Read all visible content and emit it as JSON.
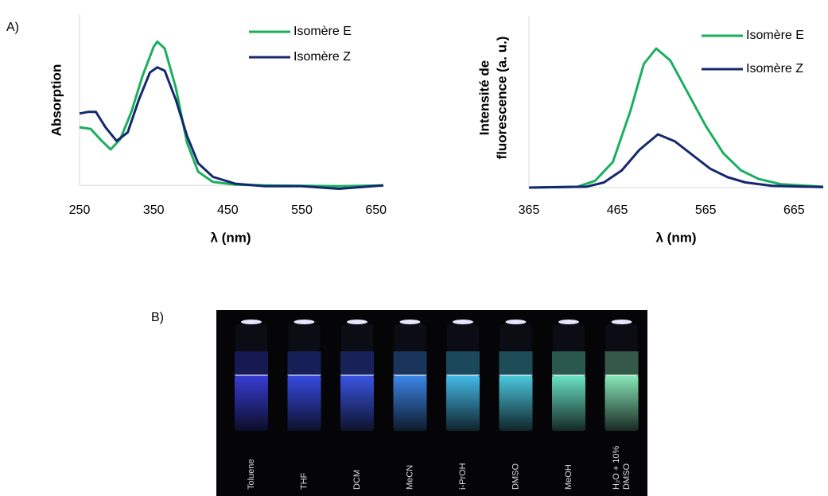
{
  "panel_labels": [
    "A)",
    "B)"
  ],
  "chart_data": [
    {
      "type": "line",
      "xlabel": "λ (nm)",
      "ylabel": "Absorption",
      "xlim": [
        250,
        660
      ],
      "xticks": [
        250,
        350,
        450,
        550,
        650
      ],
      "ylim": [
        -0.05,
        1
      ],
      "legend": "upper right",
      "series": [
        {
          "name": "Isomère E",
          "color": "#1aaf5d",
          "x": [
            250,
            265,
            280,
            292,
            305,
            320,
            335,
            350,
            355,
            365,
            380,
            395,
            410,
            430,
            460,
            500,
            600,
            660
          ],
          "values": [
            0.34,
            0.33,
            0.26,
            0.21,
            0.27,
            0.43,
            0.64,
            0.81,
            0.84,
            0.8,
            0.57,
            0.25,
            0.08,
            0.02,
            0.005,
            0,
            -0.005,
            0
          ]
        },
        {
          "name": "Isomère Z",
          "color": "#14286e",
          "x": [
            250,
            262,
            272,
            285,
            300,
            315,
            330,
            345,
            355,
            365,
            380,
            395,
            410,
            430,
            460,
            500,
            550,
            600,
            660
          ],
          "values": [
            0.42,
            0.43,
            0.43,
            0.34,
            0.26,
            0.31,
            0.5,
            0.66,
            0.69,
            0.67,
            0.5,
            0.29,
            0.13,
            0.05,
            0.01,
            -0.005,
            -0.005,
            -0.02,
            0
          ]
        }
      ]
    },
    {
      "type": "line",
      "xlabel": "λ (nm)",
      "ylabel": [
        "Intensité de",
        "fluorescence (a. u.)"
      ],
      "xlim": [
        365,
        698
      ],
      "xticks": [
        365,
        465,
        565,
        665
      ],
      "ylim": [
        0,
        1
      ],
      "legend": "upper right",
      "series": [
        {
          "name": "Isomère E",
          "color": "#1aaf5d",
          "x": [
            365,
            420,
            440,
            460,
            480,
            495,
            509,
            525,
            545,
            565,
            585,
            605,
            625,
            650,
            698
          ],
          "values": [
            0,
            0.005,
            0.04,
            0.15,
            0.45,
            0.72,
            0.81,
            0.74,
            0.55,
            0.36,
            0.2,
            0.1,
            0.05,
            0.02,
            0.005
          ]
        },
        {
          "name": "Isomère Z",
          "color": "#14286e",
          "x": [
            365,
            430,
            450,
            470,
            490,
            511,
            530,
            550,
            570,
            590,
            610,
            640,
            698
          ],
          "values": [
            0,
            0.005,
            0.03,
            0.1,
            0.22,
            0.31,
            0.27,
            0.19,
            0.11,
            0.06,
            0.03,
            0.01,
            0.003
          ]
        }
      ]
    }
  ],
  "photo": {
    "labels": [
      [
        "Toluene"
      ],
      [
        "THF"
      ],
      [
        "DCM"
      ],
      [
        "MeCN"
      ],
      [
        "i-PrOH"
      ],
      [
        "DMSO"
      ],
      [
        "MeOH"
      ],
      [
        "H₂O + 10%",
        "DMSO"
      ]
    ]
  }
}
